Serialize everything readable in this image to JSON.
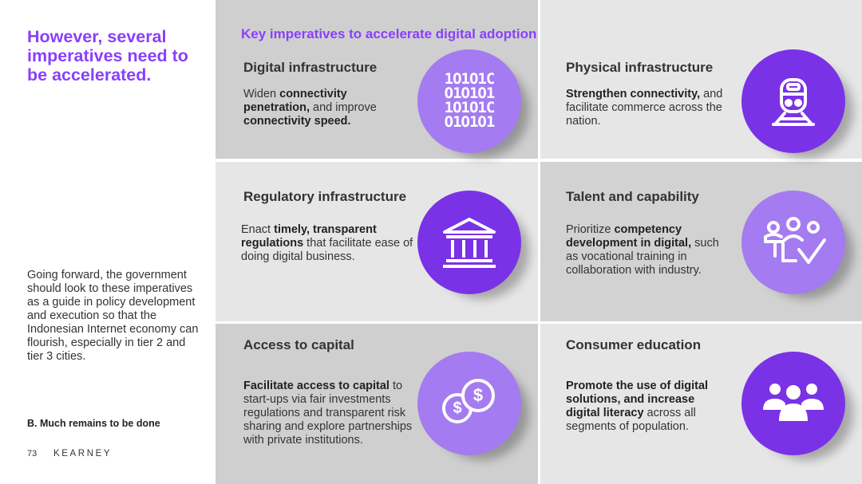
{
  "left": {
    "headline": "However, several imperatives need to be accelerated.",
    "body": "Going forward, the government should look to these imperatives as a guide in policy development and execution so that the Indonesian Internet economy can flourish, especially in tier 2 and tier 3 cities.",
    "section_label": "B. Much remains to be done",
    "page_number": "73",
    "brand": "KEARNEY"
  },
  "grid_title": "Key imperatives to accelerate digital adoption",
  "colors": {
    "accent": "#8A3FFC",
    "circle_dark": "#7A32E6",
    "circle_light": "#A47BF0"
  },
  "cards": [
    {
      "title": "Digital infrastructure",
      "desc": [
        {
          "t": "Widen ",
          "b": false
        },
        {
          "t": "connectivity penetration,",
          "b": true
        },
        {
          "t": " and improve ",
          "b": false
        },
        {
          "t": "connectivity speed.",
          "b": true
        }
      ],
      "icon": "binary-code-icon",
      "binary": [
        "1O1O1C",
        "O1O1O1",
        "1O1O1C",
        "O1O1O1"
      ]
    },
    {
      "title": "Physical infrastructure",
      "desc": [
        {
          "t": "Strengthen connectivity,",
          "b": true
        },
        {
          "t": " and facilitate commerce across the nation.",
          "b": false
        }
      ],
      "icon": "train-icon"
    },
    {
      "title": "Regulatory infrastructure",
      "desc": [
        {
          "t": "Enact ",
          "b": false
        },
        {
          "t": "timely, transparent regulations",
          "b": true
        },
        {
          "t": " that facilitate ease of doing digital business.",
          "b": false
        }
      ],
      "icon": "government-building-icon"
    },
    {
      "title": "Talent and capability",
      "desc": [
        {
          "t": "Prioritize ",
          "b": false
        },
        {
          "t": "competency development in digital,",
          "b": true
        },
        {
          "t": " such as vocational training in collaboration with industry.",
          "b": false
        }
      ],
      "icon": "team-training-icon"
    },
    {
      "title": "Access to capital",
      "desc": [
        {
          "t": "Facilitate access to capital",
          "b": true
        },
        {
          "t": " to start-ups via fair investments regulations and transparent risk sharing and explore partnerships with private institutions.",
          "b": false
        }
      ],
      "icon": "coins-icon",
      "coin_symbol": "$"
    },
    {
      "title": "Consumer education",
      "desc": [
        {
          "t": "Promote the use of digital solutions, and increase digital literacy",
          "b": true
        },
        {
          "t": " across all segments of population.",
          "b": false
        }
      ],
      "icon": "people-group-icon"
    }
  ]
}
